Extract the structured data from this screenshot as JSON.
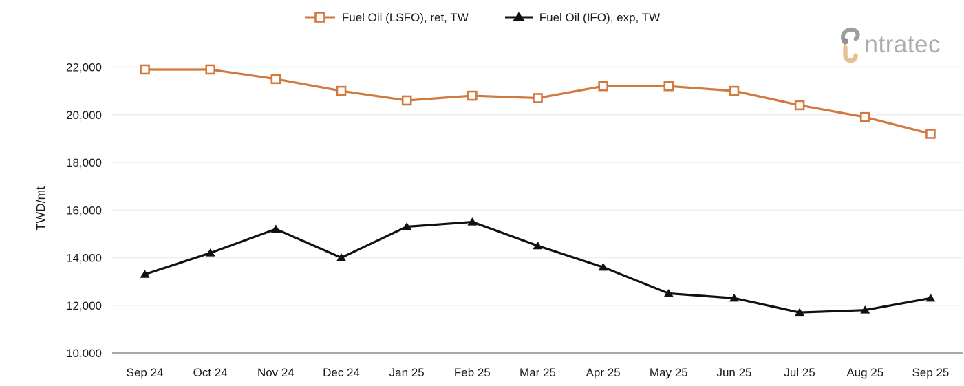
{
  "legend": {
    "items": [
      {
        "id": "lsfo",
        "label": "Fuel Oil (LSFO), ret, TW",
        "color": "#D1793F",
        "marker": "square-open"
      },
      {
        "id": "ifo",
        "label": "Fuel Oil (IFO), exp, TW",
        "color": "#111111",
        "marker": "triangle-filled"
      }
    ]
  },
  "logo": {
    "text": "ntratec",
    "icon": "intratec-i-monogram",
    "text_color": "#acacac",
    "icon_gray": "#9e9e9e",
    "icon_tan": "#e6c193"
  },
  "chart_data": {
    "type": "line",
    "title": "",
    "xlabel": "",
    "ylabel": "TWD/mt",
    "categories": [
      "Sep 24",
      "Oct 24",
      "Nov 24",
      "Dec 24",
      "Jan 25",
      "Feb 25",
      "Mar 25",
      "Apr 25",
      "May 25",
      "Jun 25",
      "Jul 25",
      "Aug 25",
      "Sep 25"
    ],
    "series": [
      {
        "name": "Fuel Oil (LSFO), ret, TW",
        "color": "#D1793F",
        "marker": "square-open",
        "values": [
          21900,
          21900,
          21500,
          21000,
          20600,
          20800,
          20700,
          21200,
          21200,
          21000,
          20400,
          19900,
          19200
        ]
      },
      {
        "name": "Fuel Oil (IFO), exp, TW",
        "color": "#111111",
        "marker": "triangle-filled",
        "values": [
          13300,
          14200,
          15200,
          14000,
          15300,
          15500,
          14500,
          13600,
          12500,
          12300,
          11700,
          11800,
          12300
        ]
      }
    ],
    "ylim": [
      10000,
      22000
    ],
    "y_ticks": [
      {
        "value": 22000,
        "label": "22,000"
      },
      {
        "value": 20000,
        "label": "20,000"
      },
      {
        "value": 18000,
        "label": "18,000"
      },
      {
        "value": 16000,
        "label": "16,000"
      },
      {
        "value": 14000,
        "label": "14,000"
      },
      {
        "value": 12000,
        "label": "12,000"
      },
      {
        "value": 10000,
        "label": "10,000"
      }
    ],
    "grid": "horizontal",
    "legend_position": "top-center",
    "colors": {
      "gridline": "#ededed",
      "axis_line": "#8c8c8c",
      "tick_text": "#1a1a1a"
    }
  }
}
